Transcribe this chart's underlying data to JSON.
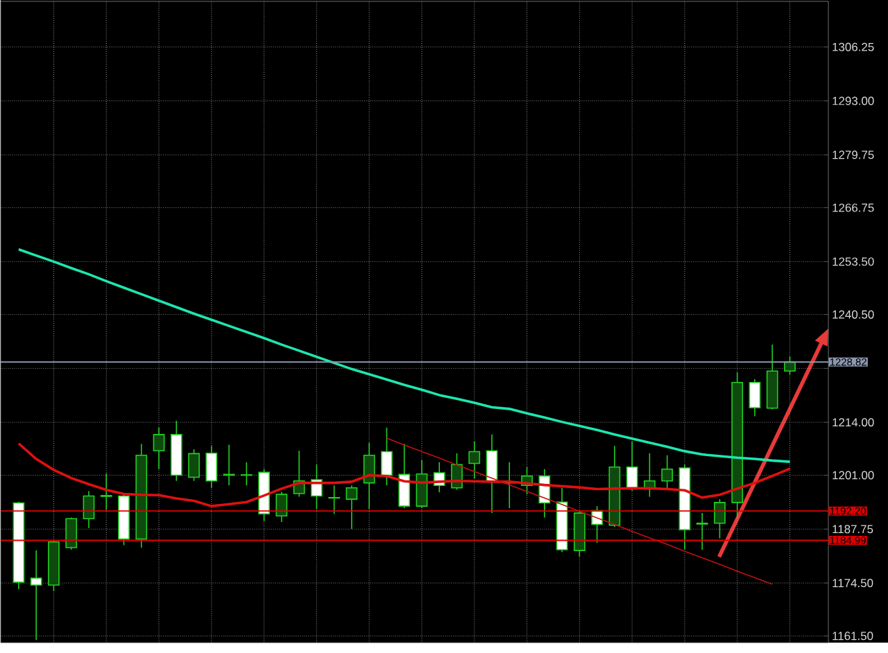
{
  "chart_data": {
    "type": "candlestick",
    "color": "#22d022",
    "grid": true,
    "tick_labels": "y",
    "ylim": [
      1159.8,
      1317.46
    ],
    "yticks": [
      {
        "value": 1161.5,
        "label": "1161.50"
      },
      {
        "value": 1174.5,
        "label": "1174.50"
      },
      {
        "value": 1187.75,
        "label": "1187.75"
      },
      {
        "value": 1201,
        "label": "1201.00"
      },
      {
        "value": 1214,
        "label": "1214.00"
      },
      {
        "value": 1227.25,
        "label": null
      },
      {
        "value": 1240.5,
        "label": "1240.50"
      },
      {
        "value": 1253.5,
        "label": "1253.50"
      },
      {
        "value": 1266.75,
        "label": "1266.75"
      },
      {
        "value": 1279.75,
        "label": "1279.75"
      },
      {
        "value": 1293,
        "label": "1293.00"
      },
      {
        "value": 1306.25,
        "label": "1306.25"
      }
    ],
    "categories": [
      null,
      null,
      null,
      null,
      null,
      null,
      null,
      null,
      null,
      null,
      null,
      null,
      null,
      null,
      null,
      null,
      null,
      null,
      null,
      null,
      null,
      null,
      null,
      null,
      null,
      null,
      null,
      null,
      null,
      null,
      null,
      null,
      null,
      null,
      null,
      null,
      null,
      null,
      null,
      null,
      null,
      null,
      null,
      null,
      null
    ],
    "ohlc": [
      [
        1194.2,
        1194.5,
        1173.0,
        1174.7
      ],
      [
        1175.7,
        1182.5,
        1160.5,
        1174.0
      ],
      [
        1174.0,
        1185.0,
        1172.5,
        1184.6
      ],
      [
        1183.2,
        1190.6,
        1182.7,
        1190.3
      ],
      [
        1190.3,
        1197.1,
        1188.0,
        1195.9
      ],
      [
        1195.8,
        1201.4,
        1192.5,
        1196.0
      ],
      [
        1195.9,
        1196.5,
        1183.8,
        1185.3
      ],
      [
        1185.3,
        1208.7,
        1183.2,
        1205.9
      ],
      [
        1207.0,
        1212.7,
        1202.5,
        1211.0
      ],
      [
        1211.0,
        1214.4,
        1199.6,
        1201.0
      ],
      [
        1200.5,
        1207.4,
        1199.6,
        1206.3
      ],
      [
        1206.4,
        1208.2,
        1197.9,
        1199.6
      ],
      [
        1201.0,
        1208.5,
        1198.5,
        1201.2
      ],
      [
        1201.0,
        1204.2,
        1198.5,
        1201.1
      ],
      [
        1201.7,
        1202.5,
        1189.7,
        1191.5
      ],
      [
        1191.0,
        1196.9,
        1189.5,
        1196.3
      ],
      [
        1196.5,
        1207.0,
        1195.7,
        1199.6
      ],
      [
        1199.9,
        1203.6,
        1192.7,
        1195.9
      ],
      [
        1195.4,
        1198.5,
        1191.5,
        1195.5
      ],
      [
        1195.1,
        1198.5,
        1187.8,
        1197.9
      ],
      [
        1199.1,
        1209.0,
        1192.7,
        1205.9
      ],
      [
        1206.8,
        1212.7,
        1198.5,
        1201.0
      ],
      [
        1201.2,
        1208.7,
        1192.9,
        1193.4
      ],
      [
        1193.4,
        1204.7,
        1192.9,
        1201.3
      ],
      [
        1201.6,
        1204.2,
        1196.8,
        1198.5
      ],
      [
        1197.9,
        1206.4,
        1197.4,
        1203.6
      ],
      [
        1203.9,
        1209.3,
        1200.2,
        1206.8
      ],
      [
        1207.0,
        1211.0,
        1191.7,
        1199.4
      ],
      [
        1199.1,
        1204.2,
        1192.9,
        1199.2
      ],
      [
        1198.5,
        1203.0,
        1196.3,
        1200.8
      ],
      [
        1200.8,
        1202.5,
        1190.6,
        1194.2
      ],
      [
        1194.4,
        1197.9,
        1182.1,
        1182.7
      ],
      [
        1182.5,
        1192.3,
        1181.0,
        1191.7
      ],
      [
        1192.3,
        1193.4,
        1184.4,
        1188.9
      ],
      [
        1188.7,
        1208.2,
        1188.3,
        1203.0
      ],
      [
        1203.0,
        1209.3,
        1197.2,
        1197.6
      ],
      [
        1197.6,
        1206.4,
        1195.7,
        1199.6
      ],
      [
        1199.6,
        1205.9,
        1197.4,
        1202.5
      ],
      [
        1202.8,
        1203.6,
        1182.7,
        1187.6
      ],
      [
        1189.0,
        1191.7,
        1182.7,
        1189.2
      ],
      [
        1189.2,
        1195.1,
        1185.5,
        1194.3
      ],
      [
        1194.3,
        1226.3,
        1190.6,
        1223.8
      ],
      [
        1223.8,
        1224.6,
        1215.5,
        1217.6
      ],
      [
        1217.5,
        1233.1,
        1217.2,
        1226.6
      ],
      [
        1226.6,
        1230.2,
        1225.7,
        1228.8
      ]
    ],
    "series": [
      {
        "type": "line",
        "color": "#1ee6b0",
        "values": [
          1256.5,
          1255.0,
          1253.5,
          1251.9,
          1250.4,
          1248.7,
          1247.1,
          1245.5,
          1243.9,
          1242.3,
          1240.7,
          1239.2,
          1237.7,
          1236.2,
          1234.7,
          1233.1,
          1231.6,
          1230.1,
          1228.6,
          1227.1,
          1225.8,
          1224.5,
          1223.2,
          1222.0,
          1220.7,
          1219.8,
          1218.8,
          1217.7,
          1217.3,
          1216.2,
          1215.2,
          1214.1,
          1213.1,
          1212.1,
          1211.0,
          1210.0,
          1209.0,
          1208.0,
          1206.9,
          1206.1,
          1205.7,
          1205.3,
          1205.0,
          1204.6,
          1204.3
        ]
      },
      {
        "type": "line",
        "color": "#e01010",
        "values": [
          1208.8,
          1205.0,
          1202.3,
          1200.3,
          1198.8,
          1197.4,
          1196.4,
          1196.2,
          1196.1,
          1195.3,
          1194.7,
          1193.4,
          1193.9,
          1194.4,
          1196.0,
          1197.7,
          1199.1,
          1199.1,
          1199.1,
          1199.4,
          1201.0,
          1200.8,
          1199.5,
          1199.2,
          1199.4,
          1199.6,
          1199.5,
          1199.4,
          1199.4,
          1199.0,
          1198.6,
          1198.3,
          1198.0,
          1197.6,
          1197.7,
          1197.8,
          1197.8,
          1197.6,
          1197.3,
          1195.5,
          1196.2,
          1197.7,
          1199.1,
          1200.8,
          1202.6
        ]
      },
      {
        "type": "line",
        "color": "#c01010",
        "values": [
          null,
          null,
          null,
          null,
          null,
          null,
          null,
          null,
          null,
          null,
          null,
          null,
          null,
          null,
          null,
          null,
          null,
          null,
          null,
          null,
          null,
          1210.1,
          1208.4,
          1206.8,
          1205.2,
          1203.5,
          1201.9,
          1200.3,
          1198.6,
          1197.0,
          1195.4,
          1193.8,
          1192.1,
          1190.5,
          1188.9,
          1187.2,
          1185.6,
          1184.0,
          1182.3,
          1180.7,
          1179.1,
          1177.4,
          1175.8,
          1174.2,
          null
        ]
      }
    ],
    "ref_lines": [
      {
        "axis": "y",
        "value": 1228.82,
        "label": "1228.82",
        "color": "#8a98b0"
      },
      {
        "axis": "y",
        "value": 1192.2,
        "label": "1192.20",
        "color": "#e00000"
      },
      {
        "axis": "y",
        "value": 1184.99,
        "label": "1184.99",
        "color": "#e00000"
      }
    ]
  }
}
